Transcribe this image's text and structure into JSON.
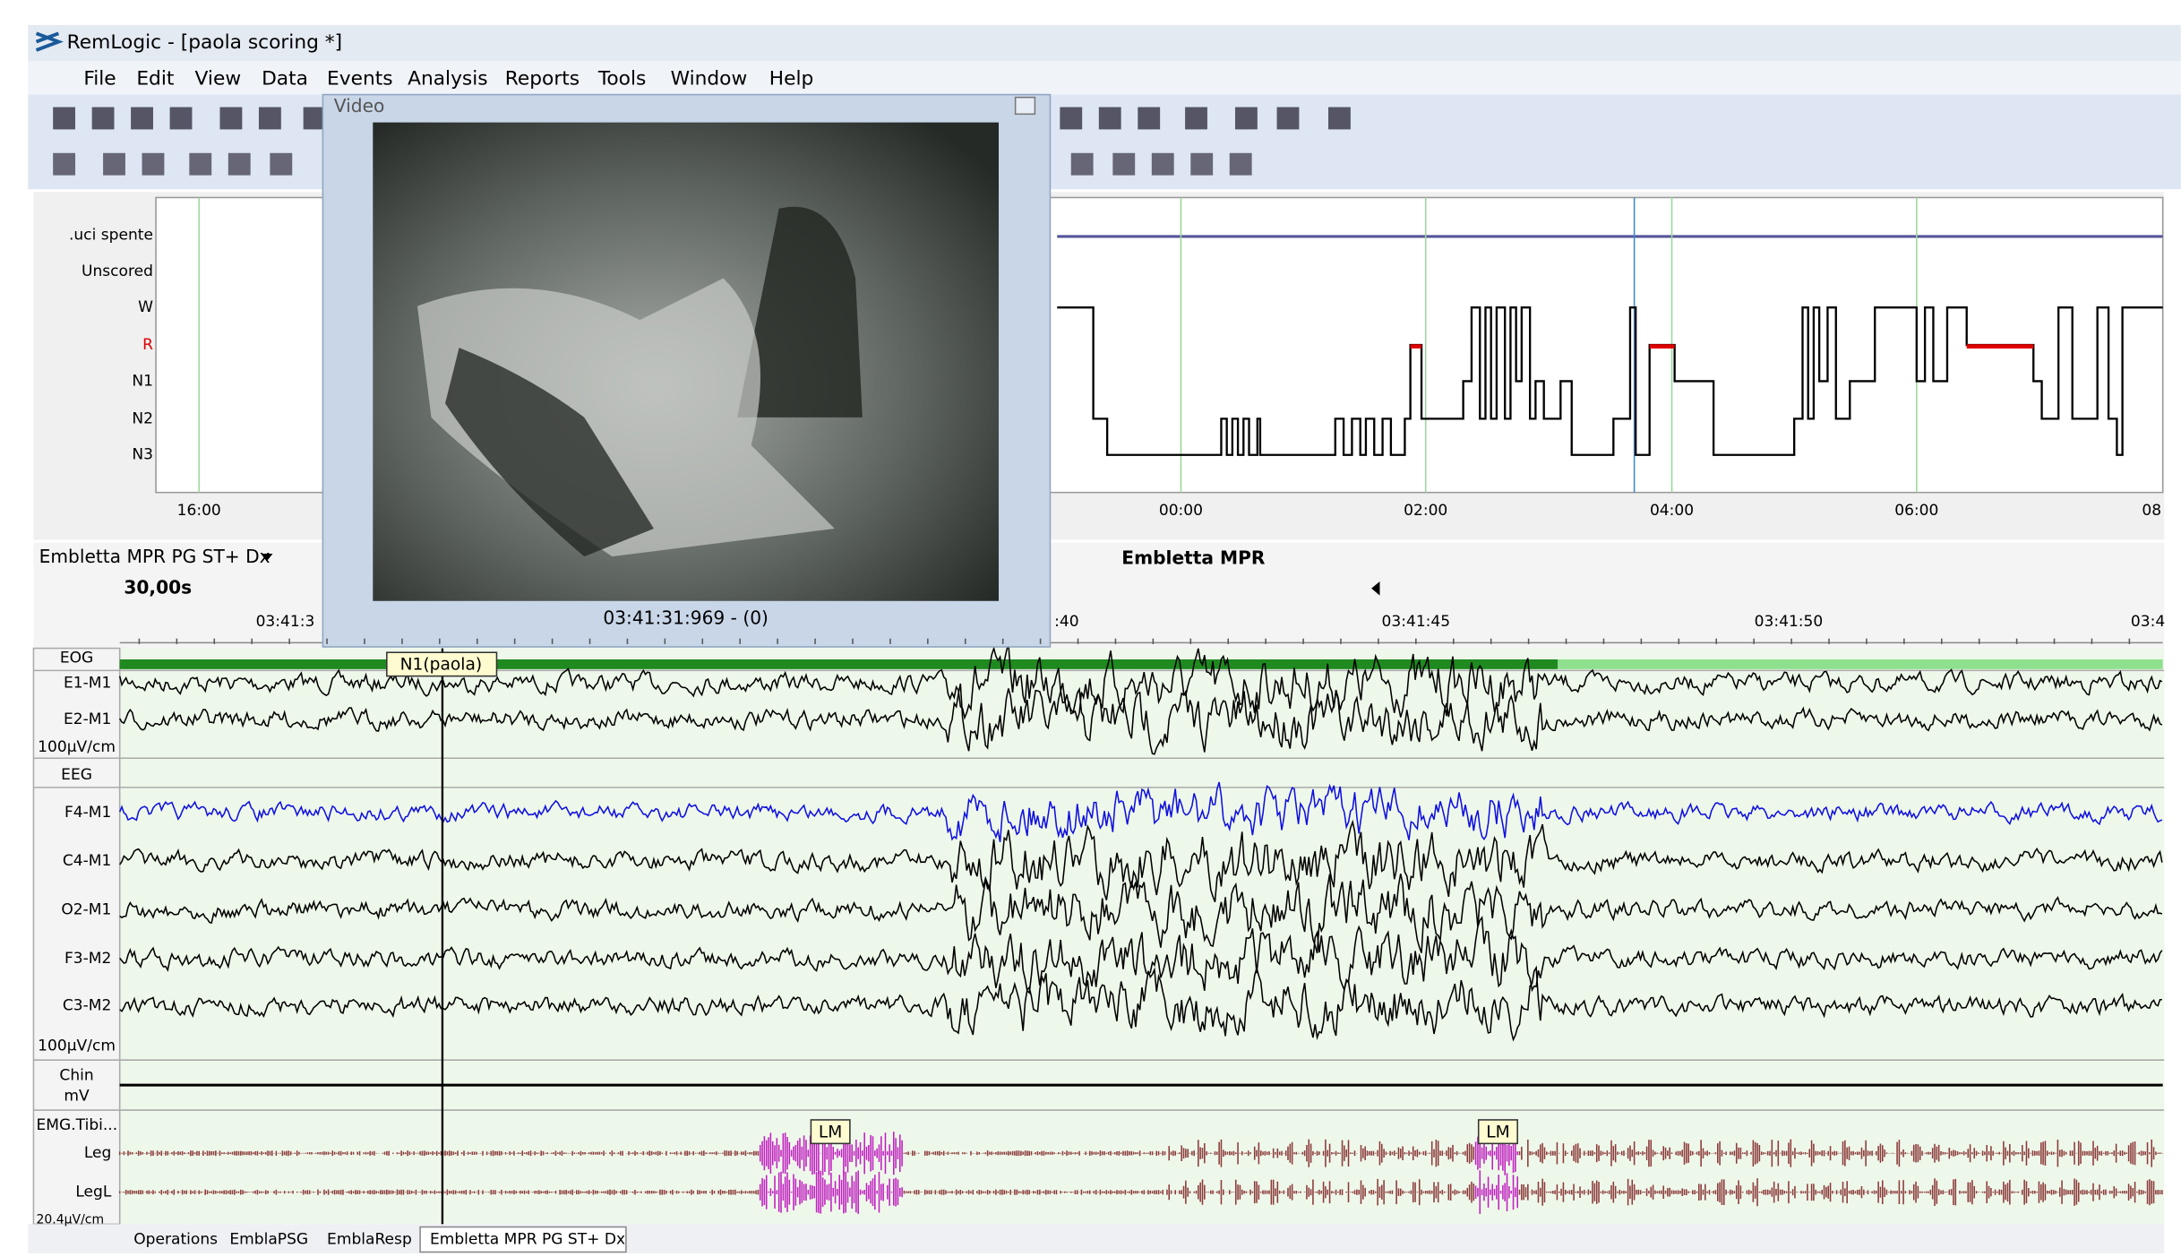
{
  "window": {
    "title": "RemLogic - [paola scoring *]"
  },
  "menu": [
    "File",
    "Edit",
    "View",
    "Data",
    "Events",
    "Analysis",
    "Reports",
    "Tools",
    "Window",
    "Help"
  ],
  "video": {
    "title": "Video",
    "timestamp": "03:41:31:969 - (0)"
  },
  "hypnogram": {
    "stages": [
      ".uci spente",
      "Unscored",
      "W",
      "R",
      "N1",
      "N2",
      "N3"
    ],
    "times": [
      "16:00",
      "00:00",
      "02:00",
      "04:00",
      "06:00",
      "08"
    ]
  },
  "montage": {
    "selector": "Embletta MPR PG ST+ Dx",
    "title": "Embletta MPR",
    "epoch": "30,00s",
    "times": [
      "03:41:3",
      ":40",
      "03:41:45",
      "03:41:50",
      "03:4"
    ]
  },
  "channels": {
    "eog": {
      "label": "EOG",
      "traces": [
        "E1-M1",
        "E2-M1"
      ],
      "scale": "100µV/cm"
    },
    "eeg": {
      "label": "EEG",
      "traces": [
        "F4-M1",
        "C4-M1",
        "O2-M1",
        "F3-M2",
        "C3-M2"
      ],
      "scale": "100µV/cm"
    },
    "chin": {
      "label": "Chin",
      "unit": "mV"
    },
    "emg": {
      "label": "EMG.Tibi...",
      "traces": [
        "Leg",
        "LegL"
      ],
      "scale": "20.4µV/cm"
    }
  },
  "events": [
    "N1(paola)",
    "LM",
    "LM"
  ],
  "tabs": [
    "Operations",
    "EmblaPSG",
    "EmblaResp",
    "Embletta MPR PG ST+ Dx"
  ]
}
